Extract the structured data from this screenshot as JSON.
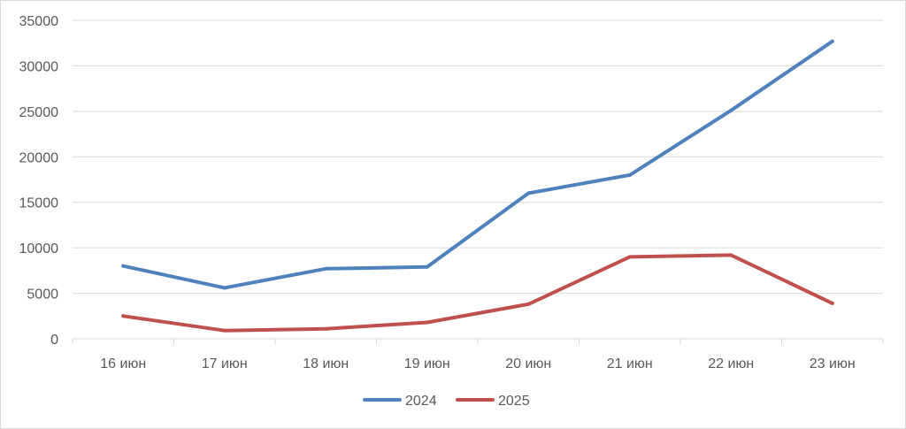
{
  "chart_data": {
    "type": "line",
    "title": "",
    "xlabel": "",
    "ylabel": "",
    "categories": [
      "16 июн",
      "17 июн",
      "18 июн",
      "19 июн",
      "20 июн",
      "21 июн",
      "22 июн",
      "23 июн"
    ],
    "ylim": [
      0,
      35000
    ],
    "yticks": [
      "0",
      "5000",
      "10000",
      "15000",
      "20000",
      "25000",
      "30000",
      "35000"
    ],
    "grid": true,
    "legend_position": "bottom",
    "series": [
      {
        "name": "2024",
        "color": "#4f81bd",
        "values": [
          8000,
          5600,
          7700,
          7900,
          16000,
          18000,
          25100,
          32700
        ]
      },
      {
        "name": "2025",
        "color": "#c0504d",
        "values": [
          2500,
          900,
          1100,
          1800,
          3800,
          9000,
          9200,
          3900
        ]
      }
    ]
  }
}
